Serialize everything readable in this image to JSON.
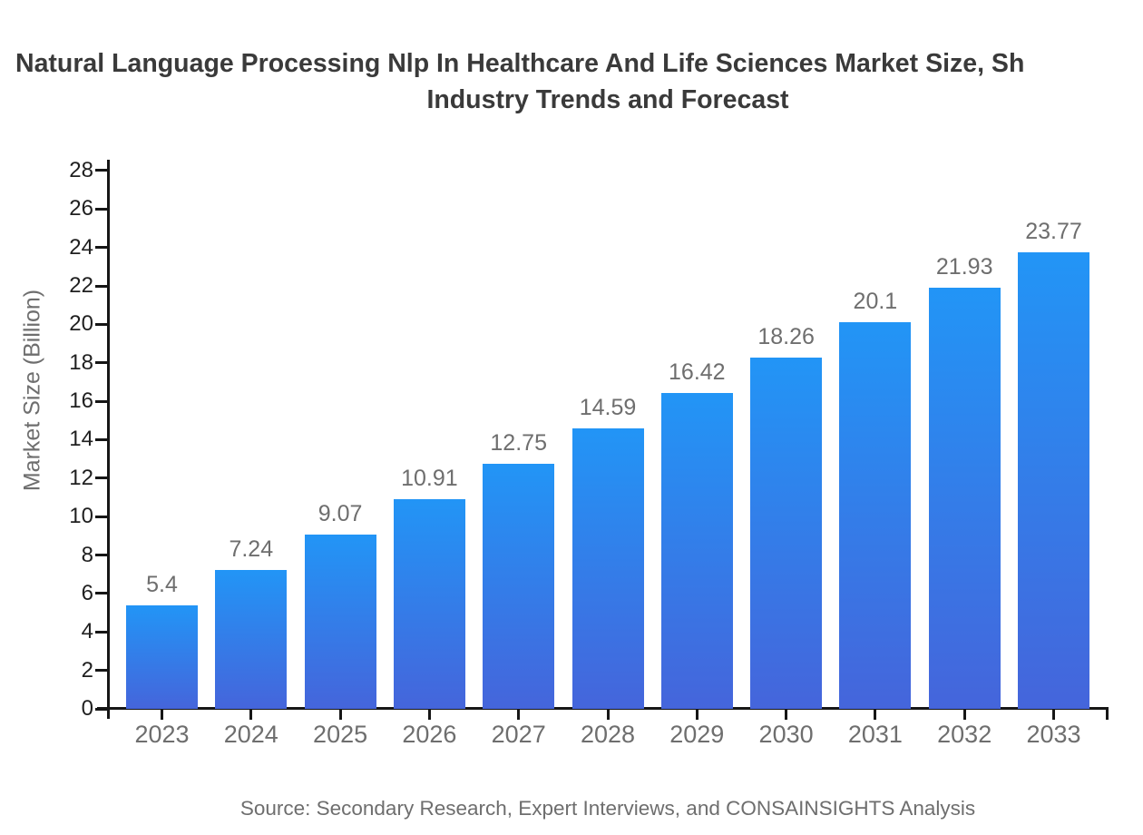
{
  "title": {
    "line1": "Natural Language Processing Nlp In Healthcare And Life Sciences Market Size, Sh",
    "line2": "Industry Trends and Forecast"
  },
  "source": "Source: Secondary Research, Expert Interviews, and CONSAINSIGHTS Analysis",
  "chart_data": {
    "type": "bar",
    "title": "Natural Language Processing Nlp In Healthcare And Life Sciences Market Size, Sh Industry Trends and Forecast",
    "categories": [
      "2023",
      "2024",
      "2025",
      "2026",
      "2027",
      "2028",
      "2029",
      "2030",
      "2031",
      "2032",
      "2033"
    ],
    "values": [
      5.4,
      7.24,
      9.07,
      10.91,
      12.75,
      14.59,
      16.42,
      18.26,
      20.1,
      21.93,
      23.77
    ],
    "value_labels": [
      "5.4",
      "7.24",
      "9.07",
      "10.91",
      "12.75",
      "14.59",
      "16.42",
      "18.26",
      "20.1",
      "21.93",
      "23.77"
    ],
    "xlabel": "",
    "ylabel": "Market Size (Billion)",
    "ylim": [
      0,
      28.5
    ],
    "yticks": [
      0,
      2,
      4,
      6,
      8,
      10,
      12,
      14,
      16,
      18,
      20,
      22,
      24,
      26,
      28
    ],
    "grid": false,
    "legend": false,
    "bar_color_top": "#2295f6",
    "bar_color_bottom": "#4565db",
    "axis_color": "#161616",
    "label_color": "#6e6e6e",
    "ytick_label_color": "#1f1f1f",
    "title_color": "#3a3a3a"
  }
}
